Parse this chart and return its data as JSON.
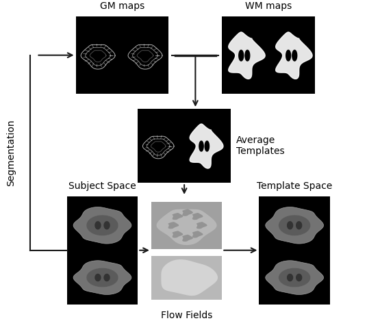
{
  "title": "",
  "bg_color": "#ffffff",
  "text_color": "#000000",
  "labels": {
    "gm_maps": "GM maps",
    "wm_maps": "WM maps",
    "avg_templates": "Average\nTemplates",
    "subject_space": "Subject Space",
    "template_space": "Template Space",
    "flow_fields": "Flow Fields",
    "segmentation": "Segmentation"
  },
  "label_fontsize": 10,
  "seg_fontsize": 10,
  "arrow_color": "#1a1a1a",
  "box_black": "#000000",
  "box_gray": "#888888"
}
